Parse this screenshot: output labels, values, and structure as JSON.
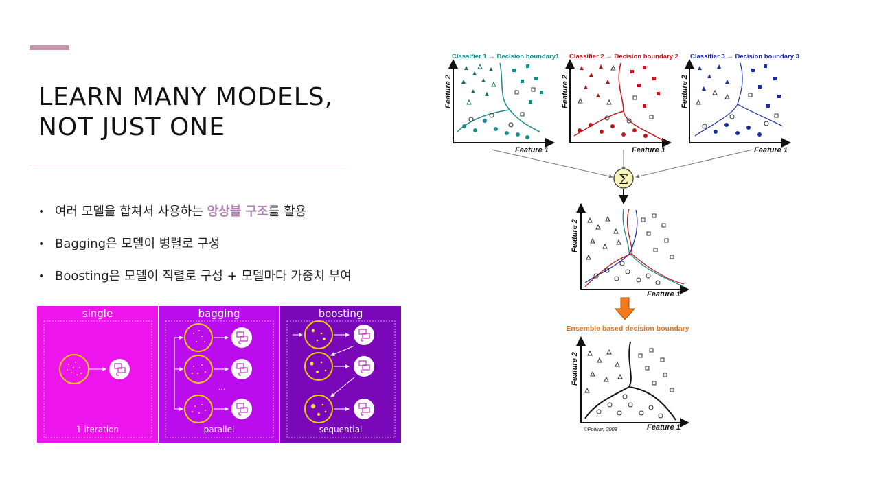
{
  "slide": {
    "title_line1": "LEARN MANY MODELS,",
    "title_line2": "NOT JUST ONE",
    "bullets": [
      {
        "pre": "여러 모델을 합쳐서 사용하는 ",
        "highlight": "앙상블 구조",
        "post": "를 활용"
      },
      {
        "pre": "Bagging은 모델이 병렬로 구성",
        "highlight": "",
        "post": ""
      },
      {
        "pre": "Boosting은 모델이 직렬로 구성 + 모델마다 가중치 부여",
        "highlight": "",
        "post": ""
      }
    ],
    "colors": {
      "accent": "#c497a8",
      "highlight": "#b07fb5",
      "single_bg": "#ee14ee",
      "bagging_bg": "#bb0cee",
      "boosting_bg": "#7a08b8"
    }
  },
  "ensemble_diagram": {
    "panels": [
      {
        "title": "single",
        "footer": "1 iteration"
      },
      {
        "title": "bagging",
        "footer": "parallel"
      },
      {
        "title": "boosting",
        "footer": "sequential"
      }
    ],
    "ellipsis": "..."
  },
  "boundary_figure": {
    "classifiers": [
      {
        "label": "Classifier 1 → Decision boundary1",
        "color": "#1a8c8c"
      },
      {
        "label": "Classifier 2 → Decision boundary 2",
        "color": "#c0181c"
      },
      {
        "label": "Classifier 3 → Decision boundary 3",
        "color": "#1a2ca0"
      }
    ],
    "x_axis_label": "Feature 1",
    "y_axis_label": "Feature 2",
    "sum_symbol": "Σ",
    "ensemble_label": "Ensemble based decision boundary",
    "credit": "©Polikar, 2008"
  }
}
